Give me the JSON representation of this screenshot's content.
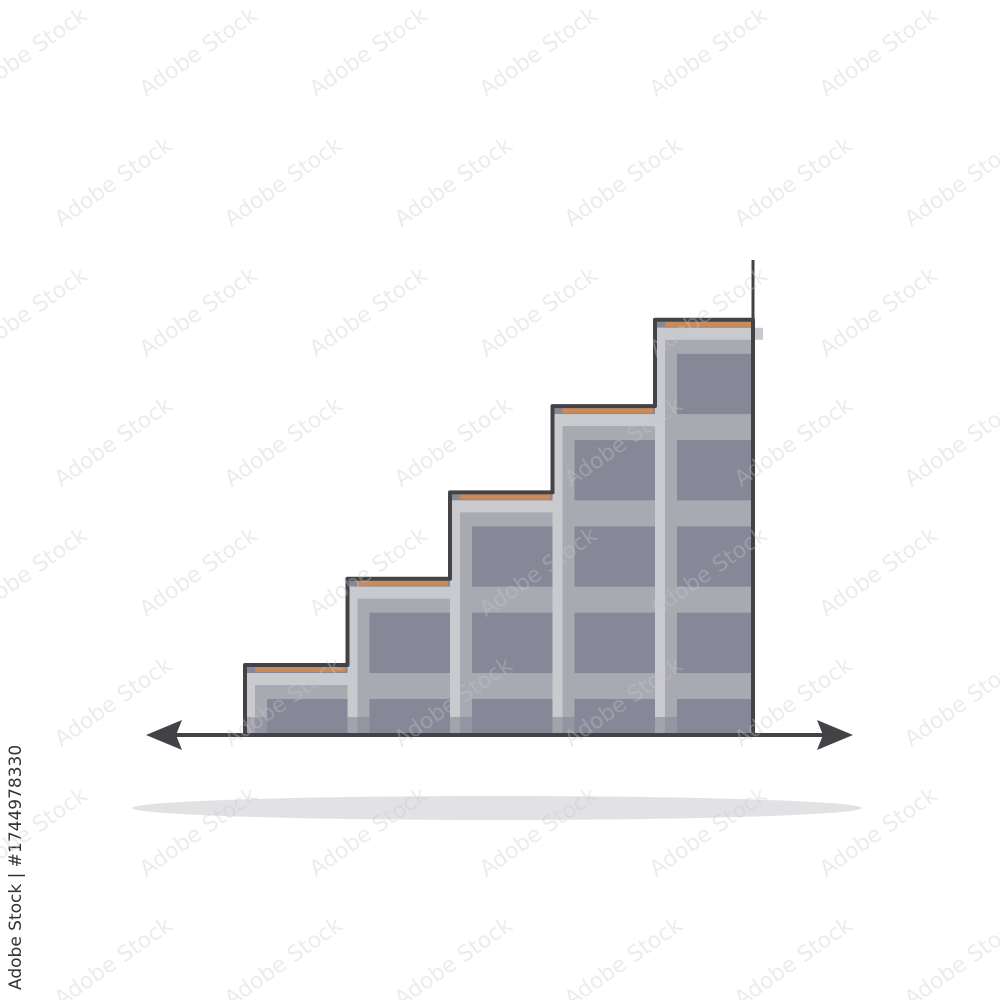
{
  "watermark": {
    "brand": "Adobe Stock",
    "separator": "|",
    "id": "#1744978330"
  },
  "colors": {
    "outline": "#434347",
    "tread": "#c98a5c",
    "highlight": "#c9cace",
    "mid": "#a8a9b1",
    "body": "#878897",
    "shadow": "#e2e2e4"
  },
  "illustration": {
    "subject": "staircase-chart",
    "steps": 5
  }
}
